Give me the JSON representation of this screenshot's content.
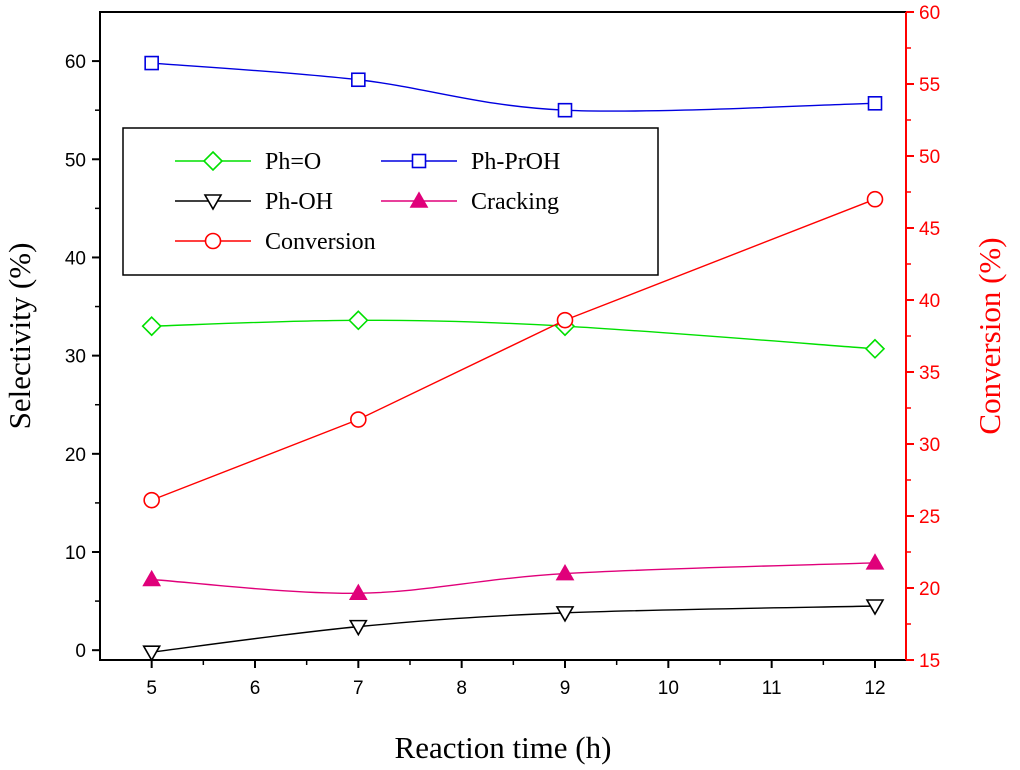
{
  "chart_data": {
    "type": "line",
    "xlabel": "Reaction time (h)",
    "ylabel_left": "Selectivity (%)",
    "ylabel_right": "Conversion (%)",
    "xlim": [
      4.5,
      12.3
    ],
    "ylim_left": [
      -1,
      65
    ],
    "ylim_right": [
      15,
      60
    ],
    "x_ticks": [
      5,
      6,
      7,
      8,
      9,
      10,
      11,
      12
    ],
    "y_left_ticks": [
      0,
      10,
      20,
      30,
      40,
      50,
      60
    ],
    "y_right_ticks": [
      15,
      20,
      25,
      30,
      35,
      40,
      45,
      50,
      55,
      60
    ],
    "grid": false,
    "legend_position": "top-left",
    "x": [
      5,
      7,
      9,
      12
    ],
    "series": [
      {
        "name": "Ph=O",
        "axis": "left",
        "marker": "diamond",
        "color": "#00e000",
        "filled": false,
        "values": [
          33.0,
          33.6,
          33.0,
          30.7
        ]
      },
      {
        "name": "Ph-PrOH",
        "axis": "left",
        "marker": "square",
        "color": "#0000e0",
        "filled": false,
        "values": [
          59.8,
          58.1,
          55.0,
          55.7
        ]
      },
      {
        "name": "Ph-OH",
        "axis": "left",
        "marker": "triangle-down",
        "color": "#000000",
        "filled": false,
        "values": [
          -0.2,
          2.4,
          3.8,
          4.5
        ]
      },
      {
        "name": "Cracking",
        "axis": "left",
        "marker": "triangle-up",
        "color": "#e0007a",
        "filled": true,
        "values": [
          7.2,
          5.8,
          7.8,
          8.9
        ]
      },
      {
        "name": "Conversion",
        "axis": "right",
        "marker": "circle",
        "color": "#ff0000",
        "filled": false,
        "values": [
          26.1,
          31.7,
          38.6,
          47.0
        ]
      }
    ],
    "legend_layout": [
      [
        "Ph=O",
        "Ph-PrOH"
      ],
      [
        "Ph-OH",
        "Cracking"
      ],
      [
        "Conversion"
      ]
    ]
  }
}
